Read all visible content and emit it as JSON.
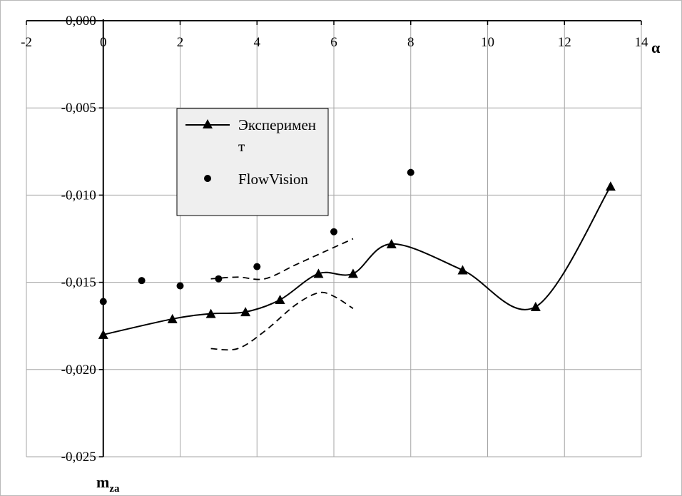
{
  "chart_data": {
    "type": "line",
    "title": "",
    "xlabel": "α",
    "ylabel": "m",
    "ylabel_sub": "za",
    "xlim": [
      -2,
      14
    ],
    "ylim": [
      -0.025,
      0.0
    ],
    "x_ticks": [
      "-2",
      "0",
      "2",
      "4",
      "6",
      "8",
      "10",
      "12",
      "14"
    ],
    "x_tick_values": [
      -2,
      0,
      2,
      4,
      6,
      8,
      10,
      12,
      14
    ],
    "y_ticks": [
      "0,000",
      "-0,005",
      "-0,010",
      "-0,015",
      "-0,020",
      "-0,025"
    ],
    "y_tick_values": [
      0.0,
      -0.005,
      -0.01,
      -0.015,
      -0.02,
      -0.025
    ],
    "grid": true,
    "legend_position": "upper-left-center",
    "series": [
      {
        "name": "Эксперимент",
        "style": "solid-line-triangle",
        "color": "#000000",
        "x": [
          0.0,
          1.8,
          2.8,
          3.7,
          4.6,
          5.6,
          6.5,
          7.5,
          9.35,
          11.25,
          13.2
        ],
        "y": [
          -0.018,
          -0.0171,
          -0.0168,
          -0.0167,
          -0.016,
          -0.0145,
          -0.0145,
          -0.0128,
          -0.0143,
          -0.0164,
          -0.0095
        ]
      },
      {
        "name": "FlowVision",
        "style": "points-circle",
        "color": "#000000",
        "x": [
          0,
          1,
          2,
          3,
          4,
          6,
          8
        ],
        "y": [
          -0.0161,
          -0.0149,
          -0.0152,
          -0.0148,
          -0.0141,
          -0.0121,
          -0.0087
        ]
      }
    ],
    "bands": [
      {
        "style": "dashed",
        "color": "#000000",
        "x": [
          2.8,
          3.5,
          4.2,
          5.0,
          5.8,
          6.5
        ],
        "y": [
          -0.0148,
          -0.0147,
          -0.0148,
          -0.014,
          -0.0132,
          -0.0125
        ]
      },
      {
        "style": "dashed",
        "color": "#000000",
        "x": [
          2.8,
          3.5,
          4.2,
          5.0,
          5.6,
          6.0,
          6.5
        ],
        "y": [
          -0.0188,
          -0.0188,
          -0.0178,
          -0.0163,
          -0.0156,
          -0.0158,
          -0.0165
        ]
      }
    ]
  }
}
